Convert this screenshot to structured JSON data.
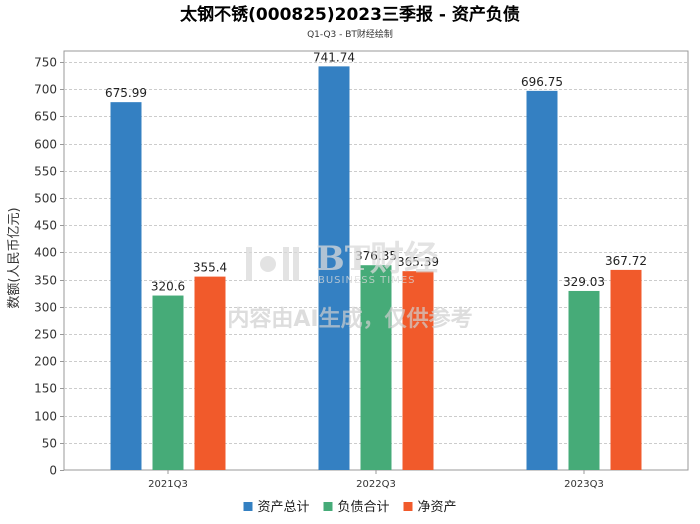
{
  "chart_data": {
    "type": "bar",
    "title": "太钢不锈(000825)2023三季报 - 资产负债",
    "subtitle": "Q1-Q3 - BT财经绘制",
    "xlabel": "",
    "ylabel": "数额(人民币亿元)",
    "categories": [
      "2021Q3",
      "2022Q3",
      "2023Q3"
    ],
    "series": [
      {
        "name": "资产总计",
        "color": "#3480c2",
        "values": [
          675.99,
          741.74,
          696.75
        ],
        "labels": [
          "675.99",
          "741.74",
          "696.75"
        ]
      },
      {
        "name": "负债合计",
        "color": "#46ab78",
        "values": [
          320.6,
          376.35,
          329.03
        ],
        "labels": [
          "320.6",
          "376.35",
          "329.03"
        ]
      },
      {
        "name": "净资产",
        "color": "#f15a2b",
        "values": [
          355.4,
          365.39,
          367.72
        ],
        "labels": [
          "355.4",
          "365.39",
          "367.72"
        ]
      }
    ],
    "ylim": [
      0,
      770
    ],
    "yticks": [
      0,
      50,
      100,
      150,
      200,
      250,
      300,
      350,
      400,
      450,
      500,
      550,
      600,
      650,
      700,
      750
    ],
    "grid": true,
    "legend": "bottom-center"
  },
  "watermark": {
    "brand": "BT财经",
    "brand_sub": "BUSINESS TIMES",
    "notice": "内容由AI生成，仅供参考"
  }
}
